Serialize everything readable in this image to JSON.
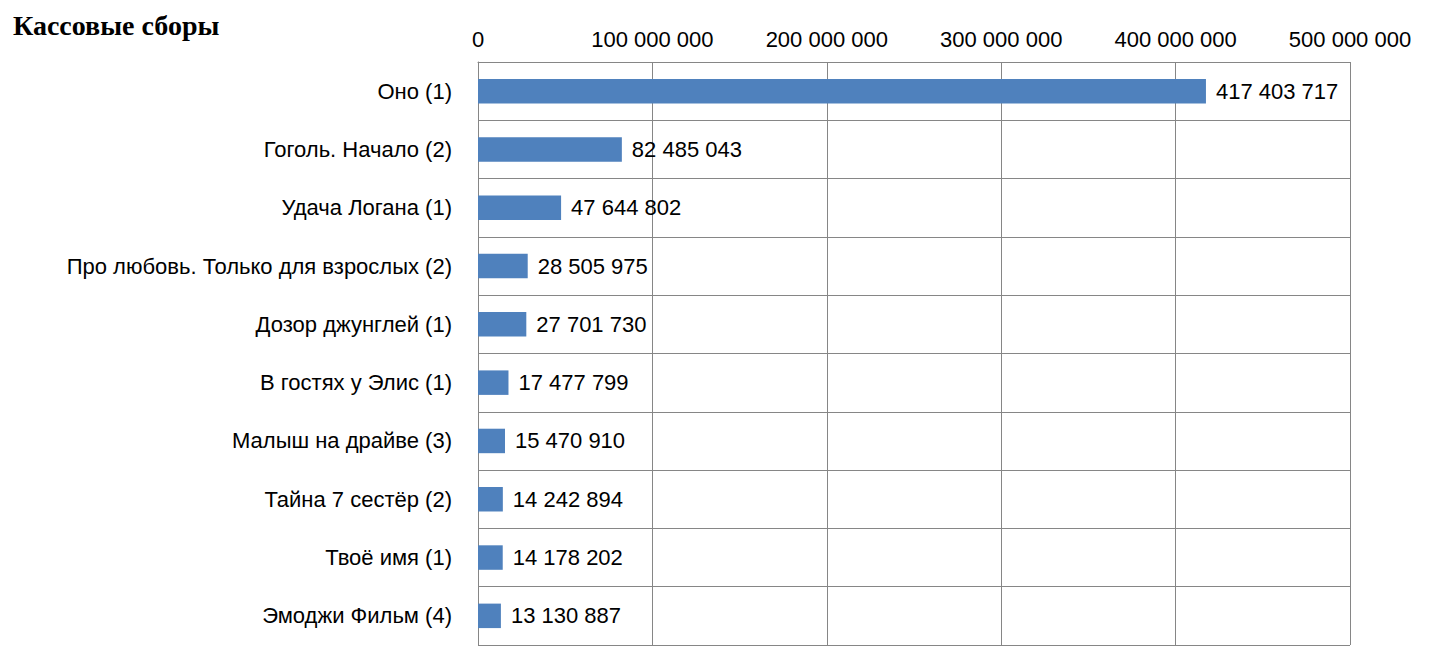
{
  "chart_data": {
    "type": "bar",
    "title": "Кассовые сборы",
    "orientation": "horizontal",
    "categories": [
      "Оно (1)",
      "Гоголь. Начало (2)",
      "Удача Логана (1)",
      "Про любовь. Только для взрослых (2)",
      "Дозор джунглей (1)",
      "В гостях у Элис (1)",
      "Малыш на драйве (3)",
      "Тайна 7 сестёр (2)",
      "Твоё имя (1)",
      "Эмоджи Фильм (4)"
    ],
    "values": [
      417403717,
      82485043,
      47644802,
      28505975,
      27701730,
      17477799,
      15470910,
      14242894,
      14178202,
      13130887
    ],
    "value_labels": [
      "417 403 717",
      "82 485 043",
      "47 644 802",
      "28 505 975",
      "27 701 730",
      "17 477 799",
      "15 470 910",
      "14 242 894",
      "14 178 202",
      "13 130 887"
    ],
    "color": "#4f81bd",
    "xlim": [
      0,
      500000000
    ],
    "xticks": [
      0,
      {
        "value": 100000000,
        "label": "100 000 000"
      },
      {
        "value": 200000000,
        "label": "200 000 000"
      },
      {
        "value": 300000000,
        "label": "300 000 000"
      },
      {
        "value": 400000000,
        "label": "400 000 000"
      },
      {
        "value": 500000000,
        "label": "500 000 000"
      }
    ],
    "grid": true,
    "data_labels": true
  }
}
